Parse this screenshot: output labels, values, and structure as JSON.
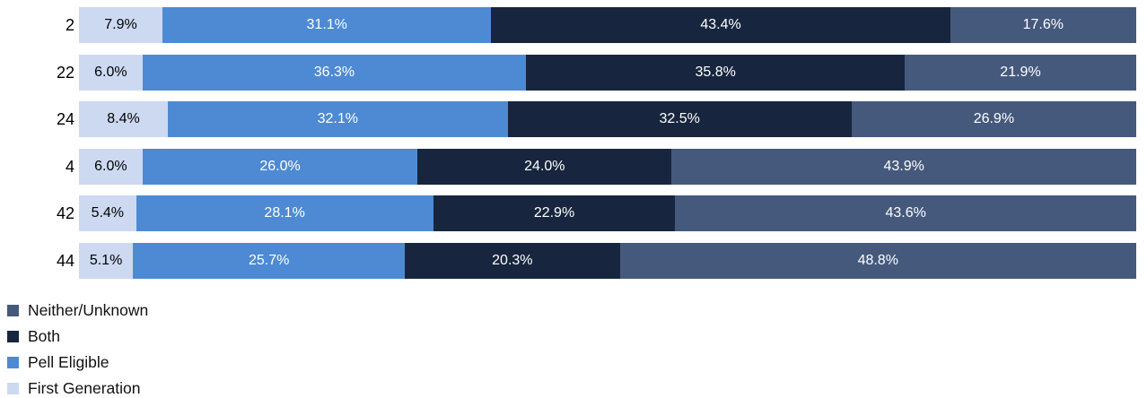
{
  "chart_data": {
    "type": "bar",
    "stacked": true,
    "orientation": "horizontal",
    "title": "",
    "xlabel": "",
    "ylabel": "",
    "xlim": [
      0,
      100
    ],
    "grid": false,
    "value_format": "percent",
    "legend_position": "bottom-left",
    "categories": [
      "2",
      "22",
      "24",
      "4",
      "42",
      "44"
    ],
    "series": [
      {
        "name": "First Generation",
        "color": "#ccd9f1",
        "label_color": "#000000",
        "values": [
          7.9,
          6.0,
          8.4,
          6.0,
          5.4,
          5.1
        ],
        "labels": [
          "7.9%",
          "6.0%",
          "8.4%",
          "6.0%",
          "5.4%",
          "5.1%"
        ]
      },
      {
        "name": "Pell Eligible",
        "color": "#4e8ad3",
        "label_color": "#ffffff",
        "values": [
          31.1,
          36.3,
          32.1,
          26.0,
          28.1,
          25.7
        ],
        "labels": [
          "31.1%",
          "36.3%",
          "32.1%",
          "26.0%",
          "28.1%",
          "25.7%"
        ]
      },
      {
        "name": "Both",
        "color": "#17263e",
        "label_color": "#ffffff",
        "values": [
          43.4,
          35.8,
          32.5,
          24.0,
          22.9,
          20.3
        ],
        "labels": [
          "43.4%",
          "35.8%",
          "32.5%",
          "24.0%",
          "22.9%",
          "20.3%"
        ]
      },
      {
        "name": "Neither/Unknown",
        "color": "#45597d",
        "label_color": "#ffffff",
        "values": [
          17.6,
          21.9,
          26.9,
          43.9,
          43.6,
          48.8
        ],
        "labels": [
          "17.6%",
          "21.9%",
          "26.9%",
          "43.9%",
          "43.6%",
          "48.8%"
        ]
      }
    ],
    "legend": [
      {
        "label": "Neither/Unknown",
        "color": "#45597d"
      },
      {
        "label": "Both",
        "color": "#17263e"
      },
      {
        "label": "Pell Eligible",
        "color": "#4e8ad3"
      },
      {
        "label": "First Generation",
        "color": "#ccd9f1"
      }
    ]
  }
}
